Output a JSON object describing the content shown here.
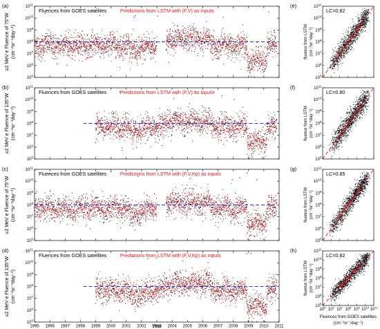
{
  "chart_data": [
    {
      "type": "scatter",
      "panel": "(a)",
      "ylabel_main": "≥2 MeV e Fluence of 75°W",
      "ylabel_unit": "(cm⁻²sr⁻¹day⁻¹)",
      "legend": {
        "observed": "Fluences from GOES satellites",
        "predicted": "Predictions from LSTM with (F,V) as inputs"
      },
      "x_range": [
        1995,
        2011
      ],
      "y_exponents": [
        5,
        6,
        7,
        8,
        9,
        10,
        11
      ],
      "threshold": 8,
      "data_start": 1995.0,
      "gap": [
        2003.0,
        2003.6
      ],
      "series": [
        {
          "name": "Fluences from GOES satellites",
          "color": "#000000"
        },
        {
          "name": "Predictions from LSTM with (F,V) as inputs",
          "color": "#e8141b"
        }
      ]
    },
    {
      "type": "scatter",
      "panel": "(b)",
      "ylabel_main": "≥2 MeV e Fluence of 135°W",
      "ylabel_unit": "(cm⁻²sr⁻¹day⁻¹)",
      "legend": {
        "observed": "Fluences from GOES satellites",
        "predicted": "Predictions from LSTM with (F,V) as inputs"
      },
      "x_range": [
        1995,
        2011
      ],
      "y_exponents": [
        5,
        6,
        7,
        8,
        9,
        10,
        11
      ],
      "threshold": 8,
      "data_start": 1999.0,
      "gap": null,
      "series": [
        {
          "name": "Fluences from GOES satellites",
          "color": "#000000"
        },
        {
          "name": "Predictions from LSTM with (F,V) as inputs",
          "color": "#e8141b"
        }
      ]
    },
    {
      "type": "scatter",
      "panel": "(c)",
      "ylabel_main": "≥2 MeV e Fluence of 75°W",
      "ylabel_unit": "(cm⁻²sr⁻¹day⁻¹)",
      "legend": {
        "observed": "Fluences from GOES satellites",
        "predicted": "Predictions from LSTM with (F,V,Kp) as inputs"
      },
      "x_range": [
        1995,
        2011
      ],
      "y_exponents": [
        5,
        6,
        7,
        8,
        9,
        10,
        11
      ],
      "threshold": 8,
      "data_start": 1995.0,
      "gap": [
        2003.0,
        2003.6
      ],
      "series": [
        {
          "name": "Fluences from GOES satellites",
          "color": "#000000"
        },
        {
          "name": "Predictions from LSTM with (F,V,Kp) as inputs",
          "color": "#e8141b"
        }
      ]
    },
    {
      "type": "scatter",
      "panel": "(d)",
      "ylabel_main": "≥2 MeV e Fluence of 135°W",
      "ylabel_unit": "(cm⁻²sr⁻¹day⁻¹)",
      "legend": {
        "observed": "Fluences from GOES satellites",
        "predicted": "Predictions from LSTM with (F,V,Kp) as inputs"
      },
      "x_range": [
        1995,
        2011
      ],
      "y_exponents": [
        5,
        6,
        7,
        8,
        9,
        10,
        11
      ],
      "threshold": 8,
      "data_start": 1999.0,
      "gap": null,
      "series": [
        {
          "name": "Fluences from GOES satellites",
          "color": "#000000"
        },
        {
          "name": "Predictions from LSTM with (F,V,Kp) as inputs",
          "color": "#e8141b"
        }
      ]
    },
    {
      "type": "scatter",
      "panel": "(e)",
      "lc_label": "LC=0.82",
      "ylabel_main": "fluence from LSTM",
      "ylabel_unit": "(cm⁻²sr⁻¹day⁻¹)",
      "axis_exponents": [
        5,
        6,
        7,
        8,
        9,
        10,
        11
      ],
      "reference_line": "y = x"
    },
    {
      "type": "scatter",
      "panel": "(f)",
      "lc_label": "LC=0.80",
      "ylabel_main": "fluence from LSTM",
      "ylabel_unit": "(cm⁻²sr⁻¹day⁻¹)",
      "axis_exponents": [
        5,
        6,
        7,
        8,
        9,
        10,
        11
      ],
      "reference_line": "y = x"
    },
    {
      "type": "scatter",
      "panel": "(g)",
      "lc_label": "LC=0.85",
      "ylabel_main": "fluence from LSTM",
      "ylabel_unit": "(cm⁻²sr⁻¹day⁻¹)",
      "axis_exponents": [
        5,
        6,
        7,
        8,
        9,
        10,
        11
      ],
      "reference_line": "y = x"
    },
    {
      "type": "scatter",
      "panel": "(h)",
      "lc_label": "LC=0.82",
      "ylabel_main": "fluence from LSTM",
      "ylabel_unit": "(cm⁻²sr⁻¹day⁻¹)",
      "axis_exponents": [
        5,
        6,
        7,
        8,
        9,
        10,
        11
      ],
      "reference_line": "y = x",
      "xlabel_main": "Fluences from GOES satellites",
      "xlabel_unit": "(cm⁻²sr⁻¹day⁻¹)"
    }
  ],
  "x_axis": {
    "title": "Year",
    "ticks": [
      "1995",
      "1996",
      "1997",
      "1998",
      "1999",
      "2000",
      "2001",
      "2002",
      "2003",
      "2004",
      "2005",
      "2006",
      "2007",
      "2008",
      "2009",
      "2010",
      "2011"
    ]
  },
  "colors": {
    "observed": "#000000",
    "predicted": "#e8141b",
    "threshold": "#1f2fd6",
    "reference": "#e8141b"
  }
}
